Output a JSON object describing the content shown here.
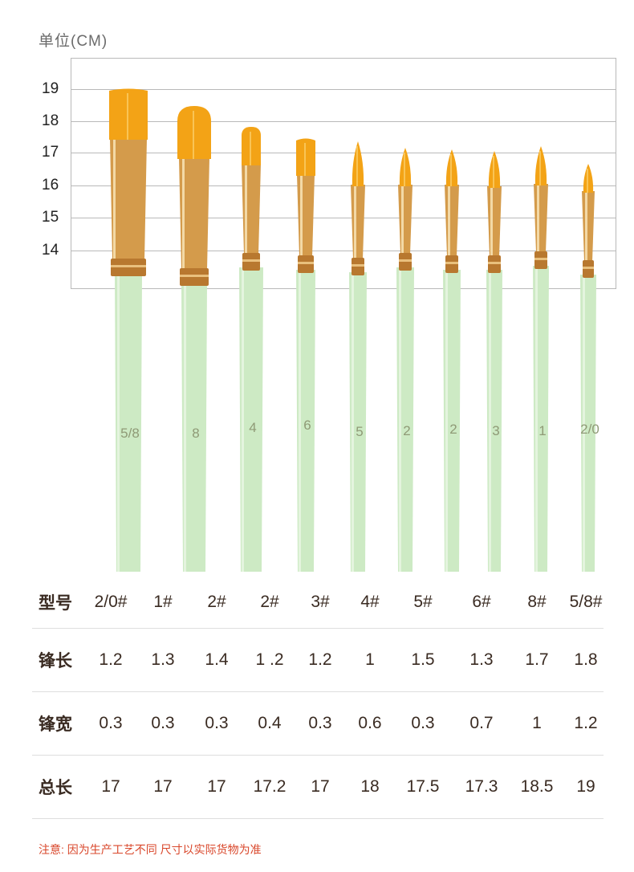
{
  "unit_label": "单位(CM)",
  "ruler_ticks": [
    "19",
    "18",
    "17",
    "16",
    "15",
    "14"
  ],
  "colors": {
    "bristle": "#f3a316",
    "ferrule": "#d49b4b",
    "handle": "#cdeac4",
    "grid": "#b9b9b9",
    "text": "#3a2b22",
    "note": "#d9472b"
  },
  "brushes": [
    {
      "shape": "flat",
      "handle_label": "5/8"
    },
    {
      "shape": "filbert",
      "handle_label": "8"
    },
    {
      "shape": "filbert",
      "handle_label": "4"
    },
    {
      "shape": "flat",
      "handle_label": "6"
    },
    {
      "shape": "round",
      "handle_label": "5"
    },
    {
      "shape": "round",
      "handle_label": "2"
    },
    {
      "shape": "round",
      "handle_label": "2"
    },
    {
      "shape": "round",
      "handle_label": "3"
    },
    {
      "shape": "round",
      "handle_label": "1"
    },
    {
      "shape": "round",
      "handle_label": "2/0"
    }
  ],
  "table": {
    "rows": [
      {
        "head": "型号",
        "values": [
          "2/0#",
          "1#",
          "2#",
          "2#",
          "3#",
          "4#",
          "5#",
          "6#",
          "8#",
          "5/8#"
        ]
      },
      {
        "head": "锋长",
        "values": [
          "1.2",
          "1.3",
          "1.4",
          "1 .2",
          "1.2",
          "1",
          "1.5",
          "1.3",
          "1.7",
          "1.8"
        ]
      },
      {
        "head": "锋宽",
        "values": [
          "0.3",
          "0.3",
          "0.3",
          "0.4",
          "0.3",
          "0.6",
          "0.3",
          "0.7",
          "1",
          "1.2"
        ]
      },
      {
        "head": "总长",
        "values": [
          "17",
          "17",
          "17",
          "17.2",
          "17",
          "18",
          "17.5",
          "17.3",
          "18.5",
          "19"
        ]
      }
    ]
  },
  "note": "注意: 因为生产工艺不同 尺寸以实际货物为准"
}
